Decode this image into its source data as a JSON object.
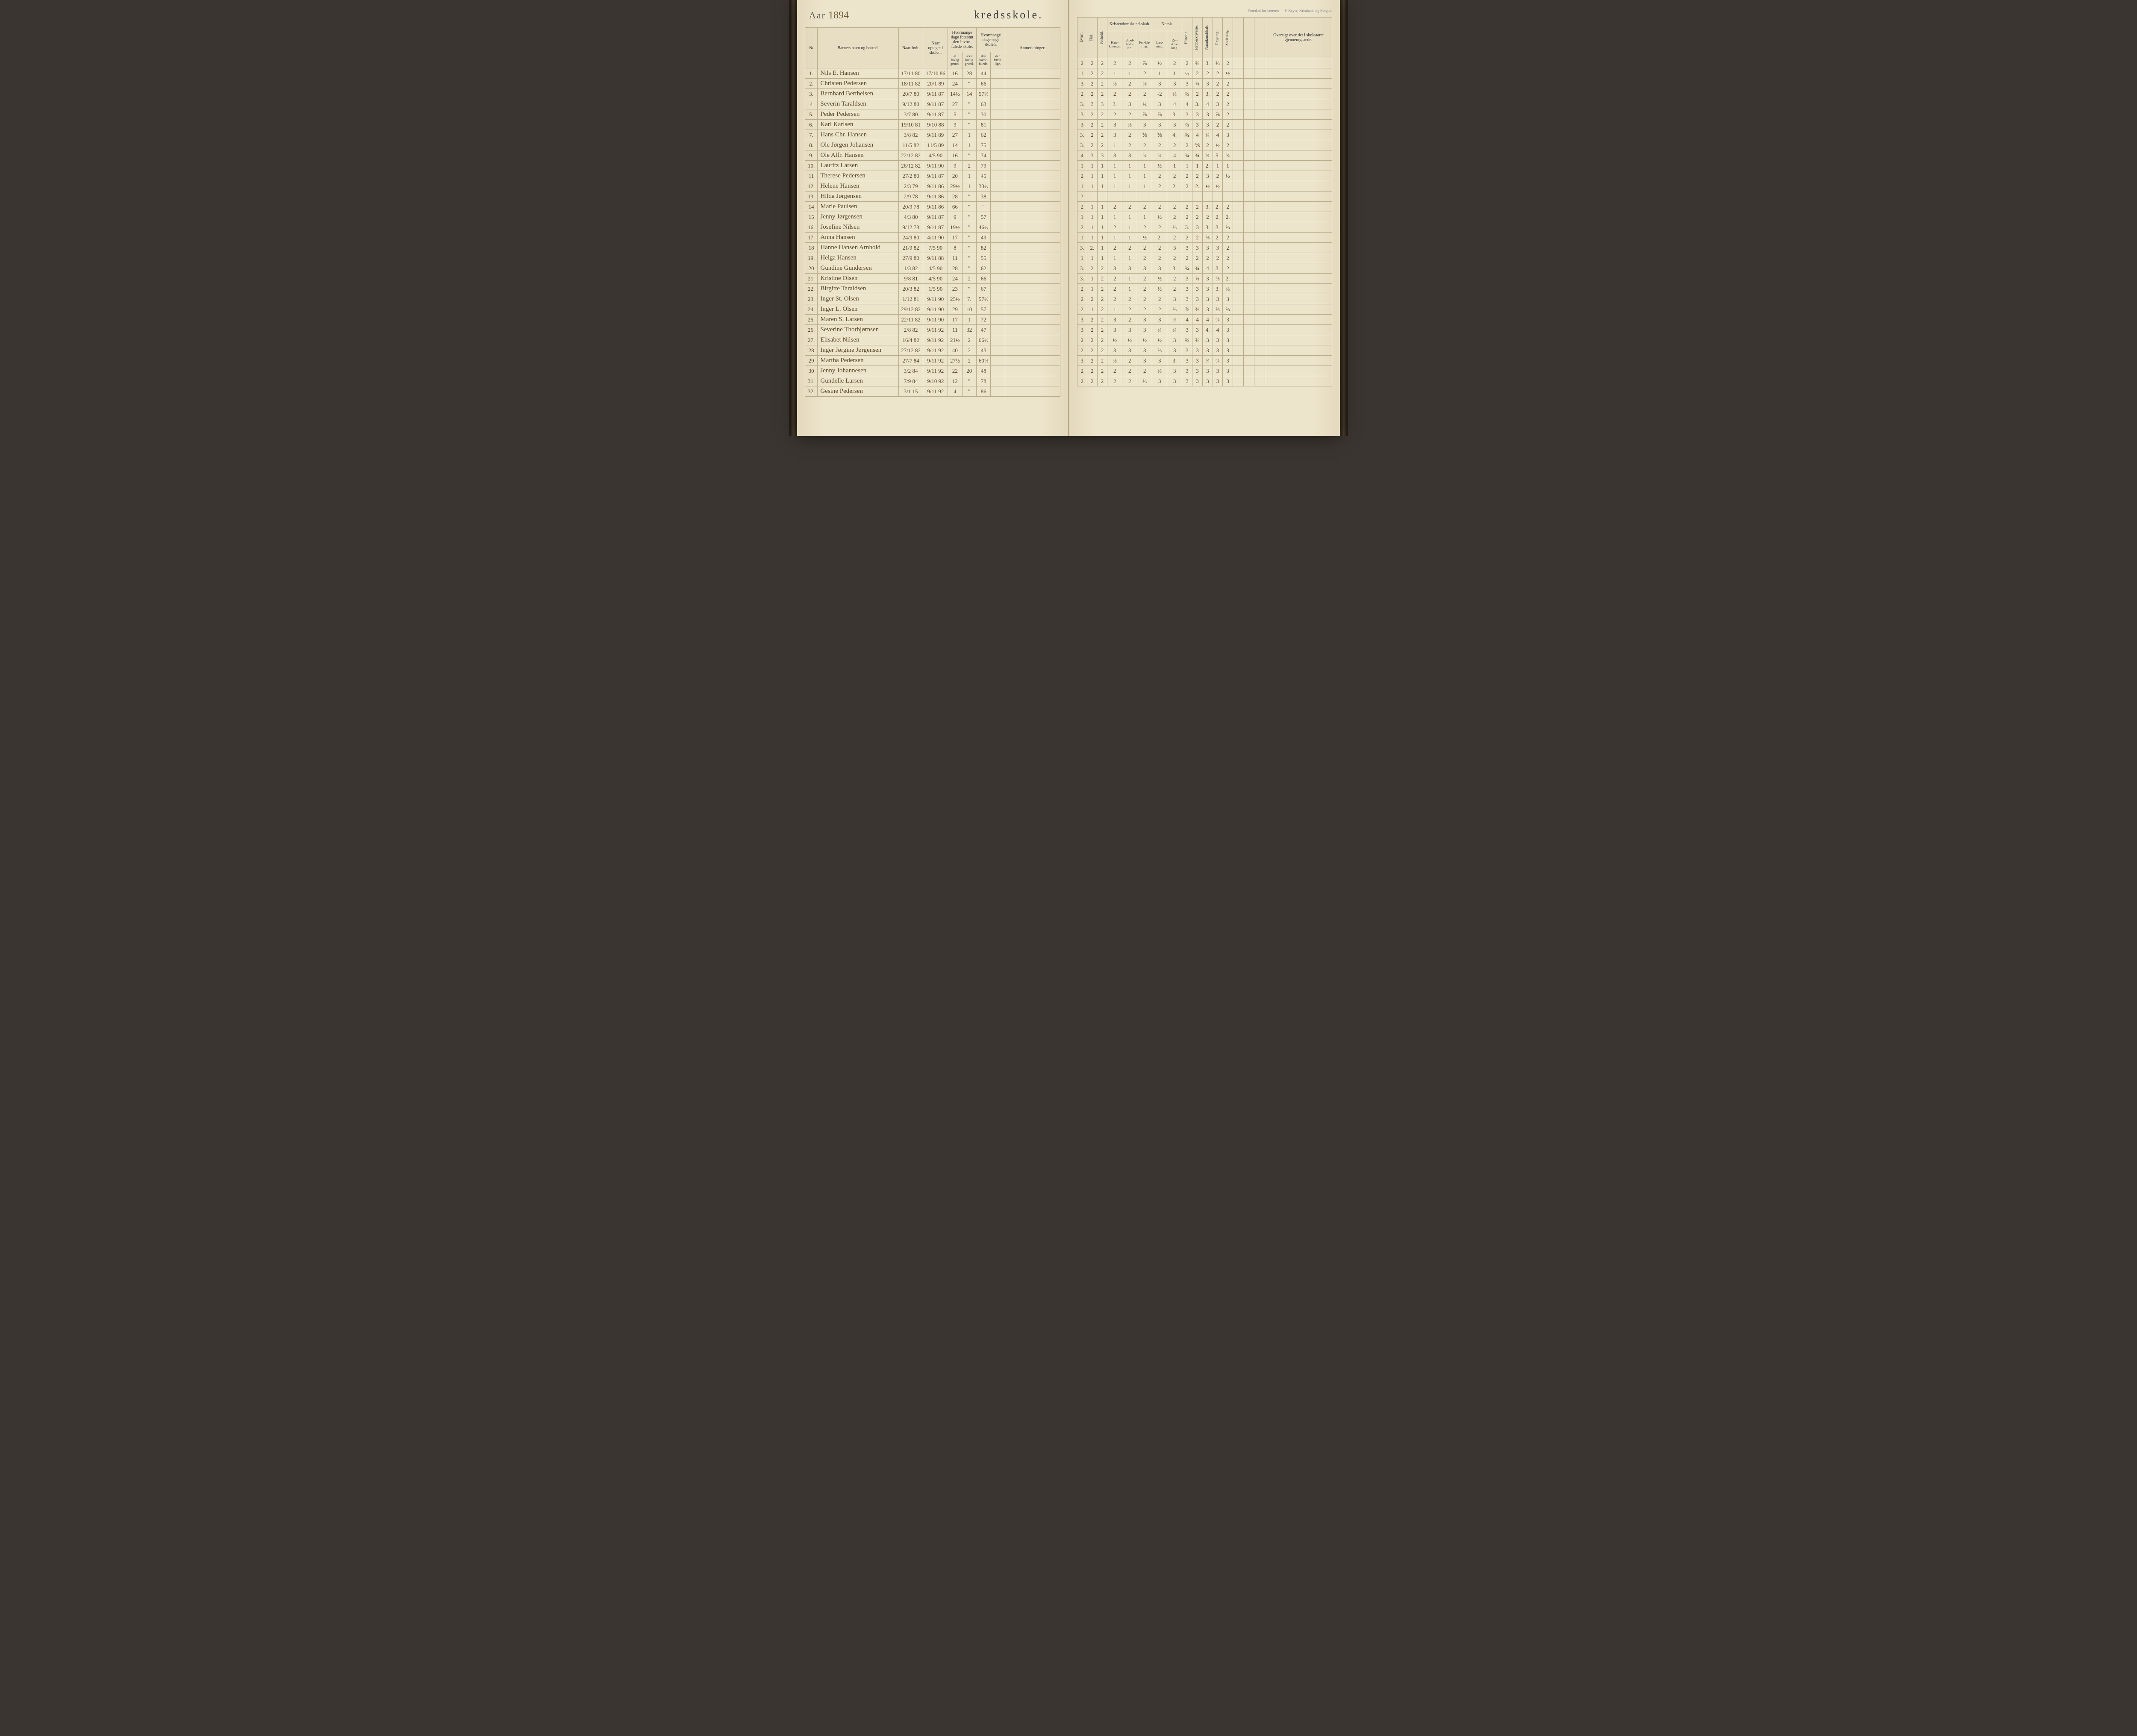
{
  "year_label": "Aar",
  "year_value": "1894",
  "title_right": "kredsskole.",
  "printer_note": "Protokol for læreren — F. Beyer, Kristiania og Bergen.",
  "left_headers": {
    "no": "№",
    "name": "Barnets navn og bosted.",
    "born": "Naar født.",
    "enrolled": "Naar optaget i skolen.",
    "absent_group": "Hvormange dage forsømt den lovbe-falede skole.",
    "absent_sub": [
      "af lovlig grund.",
      "uden lovlig grund.",
      "den lovbe-falede.",
      "den frivil-lige."
    ],
    "attended_group": "Hvormange dage søgt skolen.",
    "remarks": "Anmerkninger."
  },
  "right_headers": {
    "evner": "Evner.",
    "flid": "Flid.",
    "forhold": "Forhold.",
    "krist_group": "Kristendomskund-skab.",
    "krist_sub": [
      "Kate-kis-mus.",
      "Bibel-histo-rie.",
      "For-kla-ring."
    ],
    "norsk_group": "Norsk.",
    "norsk_sub": [
      "Læs-ning.",
      "Ret-skriv-ning."
    ],
    "historie": "Historie.",
    "jord": "Jordbeskrivelse.",
    "natur": "Naturkundskab.",
    "regning": "Regning.",
    "skrivning": "Skrivning.",
    "oversigt": "Oversigt over det i skoleaaret gjennemgaaede."
  },
  "rows": [
    {
      "no": "1.",
      "name": "Nils E. Hansen",
      "born": "17/11 80",
      "enr": "17/10 86",
      "a1": "16",
      "a2": "28",
      "att": "44",
      "g": [
        "2",
        "2",
        "2",
        "2",
        "2",
        "⅞",
        "½",
        "2",
        "2",
        "⅔",
        "3.",
        "⅔",
        "2"
      ]
    },
    {
      "no": "2.",
      "name": "Christen Pedersen",
      "born": "18/11 82",
      "enr": "20/1 89",
      "a1": "24",
      "a2": "\"",
      "att": "66",
      "g": [
        "1",
        "2",
        "2",
        "1",
        "1",
        "2",
        "1",
        "1",
        "½",
        "2",
        "2",
        "2",
        "½"
      ]
    },
    {
      "no": "3.",
      "name": "Bernhard Berthelsen",
      "born": "20/7 80",
      "enr": "9/11 87",
      "a1": "14½",
      "a2": "14",
      "att": "57½",
      "g": [
        "3",
        "2",
        "2",
        "⅔",
        "2",
        "⅔",
        "3",
        "3",
        "3",
        "⅞",
        "3",
        "2",
        "2"
      ]
    },
    {
      "no": "4",
      "name": "Severin Taraldsen",
      "born": "9/12 80",
      "enr": "9/11 87",
      "a1": "27",
      "a2": "\"",
      "att": "63",
      "g": [
        "2",
        "2",
        "2",
        "2",
        "2",
        "2",
        "-2",
        "⅔",
        "⅔",
        "2",
        "3.",
        "2",
        "2"
      ]
    },
    {
      "no": "5.",
      "name": "Peder Pedersen",
      "born": "3/7 80",
      "enr": "9/11 87",
      "a1": "5",
      "a2": "\"",
      "att": "30",
      "g": [
        "3.",
        "3",
        "3",
        "3.",
        "3",
        "¾",
        "3",
        "4",
        "4",
        "3.",
        "4",
        "3",
        "2"
      ]
    },
    {
      "no": "6.",
      "name": "Karl Karlsen",
      "born": "19/10 81",
      "enr": "9/10 88",
      "a1": "9",
      "a2": "\"",
      "att": "81",
      "g": [
        "3",
        "2",
        "2",
        "2",
        "2",
        "⅞",
        "⅞",
        "3.",
        "3",
        "3",
        "3",
        "⅞",
        "2"
      ]
    },
    {
      "no": "7.",
      "name": "Hans Chr. Hansen",
      "born": "3/8 82",
      "enr": "9/11 89",
      "a1": "27",
      "a2": "1",
      "att": "62",
      "g": [
        "3",
        "2",
        "2",
        "3",
        "⅔",
        "3",
        "3",
        "3",
        "⅔",
        "3",
        "3",
        "2",
        "2"
      ]
    },
    {
      "no": "8.",
      "name": "Ole Jørgen Johansen",
      "born": "11/5 82",
      "enr": "11/5 89",
      "a1": "14",
      "a2": "1",
      "att": "75",
      "g": [
        "3.",
        "2",
        "2",
        "3",
        "2",
        "⅗",
        "⅗",
        "4.",
        "¾",
        "4",
        "¾",
        "4",
        "3"
      ]
    },
    {
      "no": "9.",
      "name": "Ole Alfr. Hansen",
      "born": "22/12 82",
      "enr": "4/5 90",
      "a1": "16",
      "a2": "\"",
      "att": "74",
      "g": [
        "3.",
        "2",
        "2",
        "1",
        "2",
        "2",
        "2",
        "2",
        "2",
        "⅘",
        "2",
        "½",
        "2"
      ]
    },
    {
      "no": "10.",
      "name": "Lauritz Larsen",
      "born": "26/12 82",
      "enr": "9/11 90",
      "a1": "9",
      "a2": "2",
      "att": "79",
      "g": [
        "4",
        "3",
        "3",
        "3",
        "3",
        "¾",
        "¾",
        "4",
        "¾",
        "¾",
        "¾",
        "5.",
        "¾"
      ]
    },
    {
      "no": "11",
      "name": "Therese Pedersen",
      "born": "27/2 80",
      "enr": "9/11 87",
      "a1": "20",
      "a2": "1",
      "att": "45",
      "g": [
        "1",
        "1",
        "1",
        "1",
        "1",
        "1",
        "½",
        "1",
        "1",
        "1",
        "2.",
        "1",
        "1"
      ]
    },
    {
      "no": "12.",
      "name": "Helene Hansen",
      "born": "2/3 79",
      "enr": "9/11 86",
      "a1": "29½",
      "a2": "1",
      "att": "33½",
      "g": [
        "2",
        "1",
        "1",
        "1",
        "1",
        "1",
        "2",
        "2",
        "2",
        "2",
        "3",
        "2",
        "½"
      ]
    },
    {
      "no": "13.",
      "name": "Hilda Jørgensen",
      "born": "2/9 78",
      "enr": "9/11 86",
      "a1": "28",
      "a2": "\"",
      "att": "38",
      "g": [
        "1",
        "1",
        "1",
        "1",
        "1",
        "1",
        "2",
        "2.",
        "2",
        "2.",
        "½",
        "½",
        ""
      ]
    },
    {
      "no": "14",
      "name": "Marie Paulsen",
      "born": "20/9 78",
      "enr": "9/11 86",
      "a1": "66",
      "a2": "\"",
      "att": "\"",
      "g": [
        "?",
        "",
        "",
        "",
        "",
        "",
        "",
        "",
        "",
        "",
        "",
        "",
        ""
      ]
    },
    {
      "no": "15",
      "name": "Jenny Jørgensen",
      "born": "4/3 80",
      "enr": "9/11 87",
      "a1": "9",
      "a2": "\"",
      "att": "57",
      "g": [
        "2",
        "1",
        "1",
        "2",
        "2",
        "2",
        "2",
        "2",
        "2",
        "2",
        "3.",
        "2.",
        "2"
      ]
    },
    {
      "no": "16.",
      "name": "Josefine Nilsen",
      "born": "9/12 78",
      "enr": "9/11 87",
      "a1": "19½",
      "a2": "\"",
      "att": "46½",
      "g": [
        "1",
        "1",
        "1",
        "1",
        "1",
        "1",
        "½",
        "2",
        "2",
        "2",
        "2",
        "2.",
        "2."
      ]
    },
    {
      "no": "17.",
      "name": "Anna Hansen",
      "born": "24/9 80",
      "enr": "4/11 90",
      "a1": "17",
      "a2": "\"",
      "att": "49",
      "g": [
        "2",
        "1",
        "1",
        "2",
        "1",
        "2",
        "2",
        "⅔",
        "3.",
        "3",
        "3.",
        "3.",
        "⅔"
      ]
    },
    {
      "no": "18",
      "name": "Hanne Hansen Arnhold",
      "born": "21/9 82",
      "enr": "7/5 90",
      "a1": "8",
      "a2": "\"",
      "att": "82",
      "g": [
        "1",
        "1",
        "1",
        "1",
        "1",
        "½",
        "2.",
        "2",
        "2",
        "2",
        "⅔",
        "2.",
        "2"
      ]
    },
    {
      "no": "19.",
      "name": "Helga Hansen",
      "born": "27/9 80",
      "enr": "9/11 88",
      "a1": "11",
      "a2": "\"",
      "att": "55",
      "g": [
        "3.",
        "2.",
        "1",
        "2",
        "2",
        "2",
        "2",
        "3",
        "3",
        "3",
        "3",
        "3",
        "2"
      ]
    },
    {
      "no": "20",
      "name": "Gundine Gundersen",
      "born": "1/3 82",
      "enr": "4/5 90",
      "a1": "28",
      "a2": "\"",
      "att": "62",
      "g": [
        "1",
        "1",
        "1",
        "1",
        "1",
        "2",
        "2",
        "2",
        "2",
        "2",
        "2",
        "2",
        "2"
      ]
    },
    {
      "no": "21.",
      "name": "Kristine Olsen",
      "born": "9/8 81",
      "enr": "4/5 90",
      "a1": "24",
      "a2": "2",
      "att": "66",
      "g": [
        "3.",
        "2",
        "2",
        "3",
        "3",
        "3",
        "3",
        "3.",
        "¾",
        "¾",
        "4",
        "3.",
        "2"
      ]
    },
    {
      "no": "22.",
      "name": "Birgitte Taraldsen",
      "born": "20/3 82",
      "enr": "1/5 90",
      "a1": "23",
      "a2": "\"",
      "att": "67",
      "g": [
        "3.",
        "1",
        "2",
        "2",
        "1",
        "2",
        "½",
        "2",
        "3",
        "⅞",
        "3",
        "⅔",
        "2."
      ]
    },
    {
      "no": "23.",
      "name": "Inger St. Olsen",
      "born": "1/12 81",
      "enr": "9/11 90",
      "a1": "25½",
      "a2": "7.",
      "att": "57½",
      "g": [
        "2",
        "1",
        "2",
        "2",
        "1",
        "2",
        "½",
        "2",
        "3",
        "3",
        "3",
        "3.",
        "⅔"
      ]
    },
    {
      "no": "24.",
      "name": "Inger L. Olsen",
      "born": "29/12 82",
      "enr": "9/11 90",
      "a1": "29",
      "a2": "10",
      "att": "57",
      "g": [
        "2",
        "2",
        "2",
        "2",
        "2",
        "2",
        "2",
        "3",
        "3",
        "3",
        "3",
        "3",
        "3"
      ]
    },
    {
      "no": "25.",
      "name": "Maren S. Larsen",
      "born": "22/11 82",
      "enr": "9/11 90",
      "a1": "17",
      "a2": "1",
      "att": "72",
      "g": [
        "2",
        "1",
        "2",
        "1",
        "2",
        "2",
        "2",
        "⅔",
        "⅞",
        "⅔",
        "3",
        "⅔",
        "⅔"
      ]
    },
    {
      "no": "26.",
      "name": "Severine Thorbjørnsen",
      "born": "2/8 82",
      "enr": "9/11 92",
      "a1": "11",
      "a2": "32",
      "att": "47",
      "g": [
        "3",
        "2",
        "2",
        "3",
        "2",
        "3",
        "3",
        "¾",
        "4",
        "4",
        "4",
        "¾",
        "3"
      ]
    },
    {
      "no": "27.",
      "name": "Elisabet Nilsen",
      "born": "16/4 82",
      "enr": "9/11 92",
      "a1": "21½",
      "a2": "2",
      "att": "66½",
      "g": [
        "3",
        "2",
        "2",
        "3",
        "3",
        "3",
        "¾",
        "¾",
        "3",
        "3",
        "4.",
        "4",
        "3"
      ]
    },
    {
      "no": "28",
      "name": "Inger Jørgine Jørgensen",
      "born": "27/12 82",
      "enr": "9/11 92",
      "a1": "40",
      "a2": "2",
      "att": "43",
      "g": [
        "2",
        "2",
        "2",
        "½",
        "½",
        "½",
        "½",
        "3",
        "⅔",
        "⅔",
        "3",
        "3",
        "3"
      ]
    },
    {
      "no": "29",
      "name": "Martha Pedersen",
      "born": "27/7 84",
      "enr": "9/11 92",
      "a1": "27½",
      "a2": "2",
      "att": "60½",
      "g": [
        "2",
        "2",
        "2",
        "3",
        "3",
        "3",
        "⅔",
        "3",
        "3",
        "3",
        "3",
        "3",
        "3"
      ]
    },
    {
      "no": "30",
      "name": "Jenny Johannesen",
      "born": "3/2 84",
      "enr": "9/11 92",
      "a1": "22",
      "a2": "20",
      "att": "48",
      "g": [
        "3",
        "2",
        "2",
        "⅔",
        "2",
        "3",
        "3",
        "3.",
        "3",
        "3",
        "¾",
        "¾",
        "3"
      ]
    },
    {
      "no": "31.",
      "name": "Gundelle Larsen",
      "born": "7/9 84",
      "enr": "9/10 92",
      "a1": "12",
      "a2": "\"",
      "att": "78",
      "g": [
        "2",
        "2",
        "2",
        "2",
        "2",
        "2",
        "⅔",
        "3",
        "3",
        "3",
        "3",
        "3",
        "3"
      ]
    },
    {
      "no": "32.",
      "name": "Gesine Pedersen",
      "born": "3/1 15",
      "enr": "9/11 92",
      "a1": "4",
      "a2": "\"",
      "att": "86",
      "g": [
        "2",
        "2",
        "2",
        "2",
        "2",
        "⅔",
        "3",
        "3",
        "3",
        "3",
        "3",
        "3",
        "3"
      ]
    }
  ]
}
